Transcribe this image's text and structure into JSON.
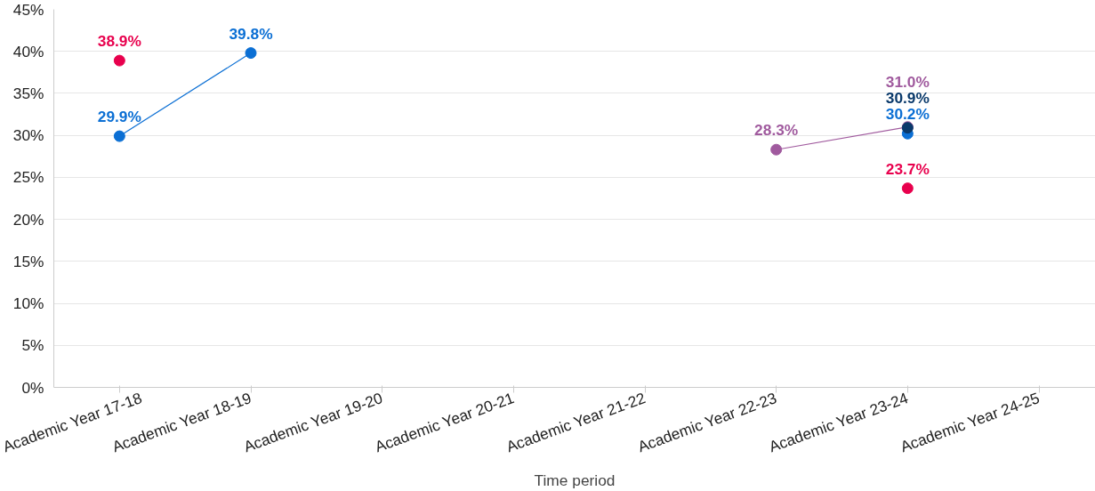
{
  "chart_data": {
    "type": "line",
    "xlabel": "Time period",
    "categories": [
      "Academic Year 17-18",
      "Academic Year 18-19",
      "Academic Year 19-20",
      "Academic Year 20-21",
      "Academic Year 21-22",
      "Academic Year 22-23",
      "Academic Year 23-24",
      "Academic Year 24-25"
    ],
    "series": [
      {
        "type": "scatter",
        "color": "#e8004d",
        "values": [
          38.9,
          null,
          null,
          null,
          null,
          null,
          23.7,
          null
        ],
        "value_labels": [
          "38.9%",
          null,
          null,
          null,
          null,
          null,
          "23.7%",
          null
        ]
      },
      {
        "color": "#a05a9e",
        "values": [
          null,
          null,
          null,
          null,
          null,
          28.3,
          31.0,
          null
        ],
        "value_labels": [
          null,
          null,
          null,
          null,
          null,
          "28.3%",
          "31.0%",
          null
        ]
      },
      {
        "color": "#0b6fd4",
        "values": [
          29.9,
          39.8,
          null,
          null,
          null,
          null,
          30.2,
          null
        ],
        "value_labels": [
          "29.9%",
          "39.8%",
          null,
          null,
          null,
          null,
          "30.2%",
          null
        ]
      },
      {
        "color": "#0b3a6b",
        "values": [
          null,
          null,
          null,
          null,
          null,
          null,
          30.9,
          null
        ],
        "value_labels": [
          null,
          null,
          null,
          null,
          null,
          null,
          "30.9%",
          null
        ]
      }
    ],
    "ylim": [
      0,
      45
    ],
    "yticks": [
      {
        "value": 0,
        "label": "0%"
      },
      {
        "value": 5,
        "label": "5%"
      },
      {
        "value": 10,
        "label": "10%"
      },
      {
        "value": 15,
        "label": "15%"
      },
      {
        "value": 20,
        "label": "20%"
      },
      {
        "value": 25,
        "label": "25%"
      },
      {
        "value": 30,
        "label": "30%"
      },
      {
        "value": 35,
        "label": "35%"
      },
      {
        "value": 40,
        "label": "40%"
      },
      {
        "value": 45,
        "label": "45%"
      }
    ],
    "grid": "y",
    "marker": "circle",
    "line_style": "solid"
  }
}
